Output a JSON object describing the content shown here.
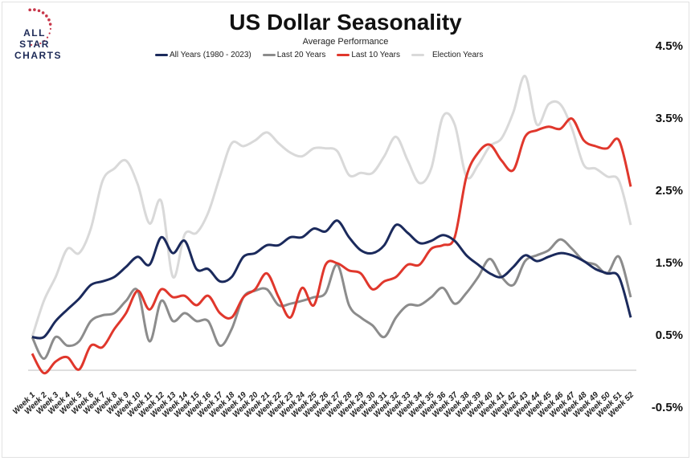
{
  "logo": {
    "text": "ALL STAR CHARTS"
  },
  "chart_data": {
    "type": "line",
    "title": "US Dollar Seasonality",
    "subtitle": "Average Performance",
    "legend_position": "top",
    "grid": false,
    "y_axis_side": "right",
    "ylim": [
      -0.5,
      4.5
    ],
    "yticks": [
      "4.5%",
      "3.5%",
      "2.5%",
      "1.5%",
      "0.5%",
      "-0.5%"
    ],
    "ytick_values": [
      4.5,
      3.5,
      2.5,
      1.5,
      0.5,
      -0.5
    ],
    "categories": [
      "Week 1",
      "Week 2",
      "Week 3",
      "Week 4",
      "Week 5",
      "Week 6",
      "Week 7",
      "Week 8",
      "Week 9",
      "Week 10",
      "Week 11",
      "Week 12",
      "Week 13",
      "Week 14",
      "Week 15",
      "Week 16",
      "Week 17",
      "Week 18",
      "Week 19",
      "Week 20",
      "Week 21",
      "Week 22",
      "Week 23",
      "Week 24",
      "Week 25",
      "Week 26",
      "Week 27",
      "Week 28",
      "Week 29",
      "Week 30",
      "Week 31",
      "Week 32",
      "Week 33",
      "Week 34",
      "Week 35",
      "Week 36",
      "Week 37",
      "Week 38",
      "Week 39",
      "Week 40",
      "Week 41",
      "Week 42",
      "Week 43",
      "Week 44",
      "Week 45",
      "Week 46",
      "Week 47",
      "Week 48",
      "Week 49",
      "Week 50",
      "Week 51",
      "Week 52"
    ],
    "series": [
      {
        "name": "Election Years",
        "color": "#d9d9d9",
        "values": [
          0.46,
          0.96,
          1.29,
          1.68,
          1.62,
          1.96,
          2.62,
          2.79,
          2.9,
          2.57,
          2.03,
          2.34,
          1.29,
          1.88,
          1.9,
          2.18,
          2.68,
          3.14,
          3.1,
          3.18,
          3.29,
          3.14,
          3.01,
          2.96,
          3.07,
          3.07,
          3.03,
          2.7,
          2.73,
          2.73,
          2.96,
          3.23,
          2.9,
          2.59,
          2.79,
          3.51,
          3.4,
          2.68,
          2.84,
          3.1,
          3.21,
          3.57,
          4.07,
          3.4,
          3.68,
          3.68,
          3.34,
          2.84,
          2.79,
          2.68,
          2.62,
          2.01
        ]
      },
      {
        "name": "Last 20 Years",
        "color": "#8c8c8c",
        "values": [
          0.46,
          0.16,
          0.46,
          0.34,
          0.4,
          0.68,
          0.76,
          0.79,
          0.96,
          1.1,
          0.4,
          0.96,
          0.68,
          0.79,
          0.68,
          0.68,
          0.34,
          0.57,
          1.01,
          1.1,
          1.12,
          0.9,
          0.92,
          0.96,
          1.01,
          1.07,
          1.46,
          0.9,
          0.73,
          0.62,
          0.46,
          0.73,
          0.9,
          0.9,
          1.01,
          1.14,
          0.92,
          1.07,
          1.29,
          1.54,
          1.29,
          1.18,
          1.51,
          1.59,
          1.66,
          1.81,
          1.68,
          1.51,
          1.46,
          1.34,
          1.57,
          1.01
        ]
      },
      {
        "name": "Last 10 Years",
        "color": "#e0372c",
        "values": [
          0.23,
          -0.04,
          0.12,
          0.18,
          0.01,
          0.34,
          0.32,
          0.57,
          0.79,
          1.1,
          0.84,
          1.12,
          1.01,
          1.03,
          0.9,
          1.03,
          0.79,
          0.73,
          1.01,
          1.12,
          1.34,
          1.01,
          0.73,
          1.14,
          0.9,
          1.46,
          1.48,
          1.38,
          1.34,
          1.12,
          1.23,
          1.29,
          1.46,
          1.46,
          1.68,
          1.73,
          1.84,
          2.68,
          3.01,
          3.12,
          2.9,
          2.77,
          3.23,
          3.32,
          3.37,
          3.34,
          3.48,
          3.18,
          3.1,
          3.07,
          3.18,
          2.54
        ]
      },
      {
        "name": "All Years (1980 - 2023)",
        "color": "#1b2a5c",
        "values": [
          0.46,
          0.46,
          0.68,
          0.84,
          0.99,
          1.18,
          1.23,
          1.29,
          1.43,
          1.57,
          1.46,
          1.84,
          1.62,
          1.79,
          1.4,
          1.4,
          1.23,
          1.29,
          1.57,
          1.62,
          1.73,
          1.73,
          1.84,
          1.84,
          1.96,
          1.92,
          2.07,
          1.84,
          1.66,
          1.62,
          1.73,
          2.01,
          1.9,
          1.76,
          1.79,
          1.87,
          1.79,
          1.59,
          1.46,
          1.34,
          1.29,
          1.43,
          1.59,
          1.51,
          1.57,
          1.62,
          1.59,
          1.51,
          1.4,
          1.34,
          1.29,
          0.73
        ]
      }
    ],
    "legend_order": [
      "All Years (1980 - 2023)",
      "Last 20 Years",
      "Last 10 Years",
      "Election Years"
    ]
  }
}
